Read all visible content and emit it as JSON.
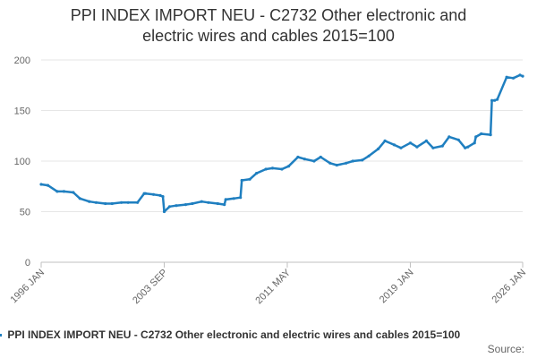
{
  "chart_data": {
    "type": "line",
    "title": "PPI INDEX IMPORT NEU - C2732 Other electronic and electric wires and cables 2015=100",
    "title_lines": [
      "PPI INDEX IMPORT NEU - C2732 Other electronic and",
      "electric wires and cables 2015=100"
    ],
    "xlabel": "",
    "ylabel": "",
    "ylim": [
      0,
      200
    ],
    "yticks": [
      0,
      50,
      100,
      150,
      200
    ],
    "x_range": [
      "1996-01",
      "2026-01"
    ],
    "xticks": [
      "1996 JAN",
      "2003 SEP",
      "2011 MAY",
      "2019 JAN",
      "2026 JAN"
    ],
    "grid": "horizontal",
    "legend_position": "bottom",
    "source_label": "Source:",
    "color": "#1f7fc0",
    "series": [
      {
        "name": "PPI INDEX IMPORT NEU - C2732 Other electronic and electric wires and cables 2015=100",
        "x": [
          "1996-01",
          "1996-06",
          "1997-01",
          "1997-06",
          "1998-01",
          "1998-06",
          "1999-01",
          "1999-06",
          "2000-01",
          "2000-06",
          "2001-01",
          "2001-06",
          "2002-01",
          "2002-06",
          "2002-07",
          "2003-01",
          "2003-06",
          "2003-08",
          "2003-09",
          "2004-01",
          "2004-06",
          "2005-01",
          "2005-06",
          "2006-01",
          "2006-06",
          "2007-01",
          "2007-06",
          "2007-07",
          "2008-01",
          "2008-06",
          "2008-07",
          "2009-01",
          "2009-06",
          "2010-01",
          "2010-06",
          "2011-01",
          "2011-06",
          "2012-01",
          "2012-06",
          "2013-01",
          "2013-06",
          "2014-01",
          "2014-06",
          "2015-01",
          "2015-06",
          "2016-01",
          "2016-06",
          "2017-01",
          "2017-06",
          "2018-01",
          "2018-06",
          "2019-01",
          "2019-06",
          "2020-01",
          "2020-06",
          "2021-01",
          "2021-06",
          "2022-01",
          "2022-06",
          "2022-08",
          "2023-01",
          "2023-02",
          "2023-06",
          "2024-01",
          "2024-02",
          "2024-04",
          "2024-06",
          "2025-01",
          "2025-06",
          "2025-11",
          "2026-01"
        ],
        "values": [
          77,
          76,
          70,
          70,
          69,
          63,
          60,
          59,
          58,
          58,
          59,
          59,
          59,
          68,
          68,
          67,
          66,
          65,
          50,
          55,
          56,
          57,
          58,
          60,
          59,
          58,
          57,
          62,
          63,
          64,
          81,
          82,
          88,
          92,
          93,
          92,
          95,
          104,
          102,
          100,
          104,
          98,
          96,
          98,
          100,
          101,
          105,
          112,
          120,
          116,
          113,
          118,
          114,
          120,
          113,
          115,
          124,
          121,
          113,
          114,
          118,
          124,
          127,
          126,
          160,
          160,
          161,
          183,
          182,
          185,
          184
        ]
      }
    ]
  }
}
